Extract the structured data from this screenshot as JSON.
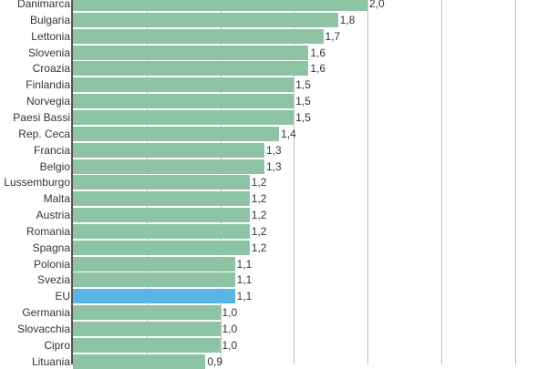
{
  "chart_data": {
    "type": "bar",
    "orientation": "horizontal",
    "title": "",
    "xlabel": "",
    "ylabel": "",
    "xlim": [
      0,
      3.0
    ],
    "grid": true,
    "gridline_values": [
      0.5,
      1.0,
      1.5,
      2.0,
      2.5,
      3.0
    ],
    "highlight_category": "EU",
    "colors": {
      "default": "#8dc4a6",
      "highlight": "#5ab4e5",
      "axis": "#555555",
      "grid": "#c4c4c4",
      "text": "#333333"
    },
    "categories": [
      "Danimarca",
      "Bulgaria",
      "Lettonia",
      "Slovenia",
      "Croazia",
      "Finlandia",
      "Norvegia",
      "Paesi Bassi",
      "Rep. Ceca",
      "Francia",
      "Belgio",
      "Lussemburgo",
      "Malta",
      "Austria",
      "Romania",
      "Spagna",
      "Polonia",
      "Svezia",
      "EU",
      "Germania",
      "Slovacchia",
      "Cipro",
      "Lituania"
    ],
    "values": [
      2.0,
      1.8,
      1.7,
      1.6,
      1.6,
      1.5,
      1.5,
      1.5,
      1.4,
      1.3,
      1.3,
      1.2,
      1.2,
      1.2,
      1.2,
      1.2,
      1.1,
      1.1,
      1.1,
      1.0,
      1.0,
      1.0,
      0.9
    ],
    "value_labels": [
      "2,0",
      "1,8",
      "1,7",
      "1,6",
      "1,6",
      "1,5",
      "1,5",
      "1,5",
      "1,4",
      "1,3",
      "1,3",
      "1,2",
      "1,2",
      "1,2",
      "1,2",
      "1,2",
      "1,1",
      "1,1",
      "1,1",
      "1,0",
      "1,0",
      "1,0",
      "0,9"
    ]
  }
}
